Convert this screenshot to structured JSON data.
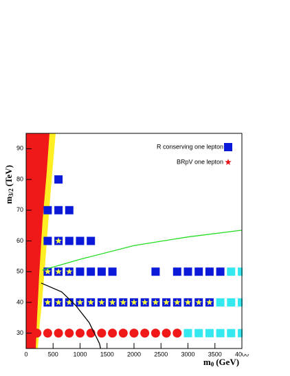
{
  "chart_data": {
    "type": "scatter",
    "xlabel": {
      "main": "m",
      "sub": "0",
      "unit": "(GeV)"
    },
    "ylabel": {
      "main": "m",
      "sub": "3/2",
      "unit": "(TeV)"
    },
    "xlim": [
      0,
      4000
    ],
    "ylim": [
      25,
      95
    ],
    "xticks": [
      0,
      500,
      1000,
      1500,
      2000,
      2500,
      3000,
      3500,
      4000
    ],
    "yticks": [
      30,
      40,
      50,
      60,
      70,
      80,
      90
    ],
    "series": [
      {
        "name": "R conserving one lepton",
        "color": "#0a1ad8",
        "marker": "square",
        "x": [
          600,
          400,
          600,
          800,
          400,
          600,
          800,
          1000,
          1200,
          400,
          600,
          800,
          1000,
          1200,
          1400,
          1600,
          2400,
          2800,
          3000,
          3200,
          3400,
          3600,
          400,
          600,
          800,
          1000,
          1200,
          1400,
          1600,
          1800,
          2000,
          2200,
          2400,
          2600,
          2800,
          3000,
          3200,
          3400
        ],
        "y": [
          80,
          70,
          70,
          70,
          60,
          60,
          60,
          60,
          60,
          50,
          50,
          50,
          50,
          50,
          50,
          50,
          50,
          50,
          50,
          50,
          50,
          50,
          40,
          40,
          40,
          40,
          40,
          40,
          40,
          40,
          40,
          40,
          40,
          40,
          40,
          40,
          40,
          40
        ]
      },
      {
        "color": "#33e8ef",
        "marker": "square",
        "x": [
          3800,
          4000,
          3600,
          3800,
          4000,
          3000,
          3200,
          3400,
          3600,
          3800,
          4000
        ],
        "y": [
          50,
          50,
          40,
          40,
          40,
          30,
          30,
          30,
          30,
          30,
          30
        ]
      },
      {
        "color": "#f01818",
        "marker": "circle",
        "x": [
          200,
          400,
          600,
          800,
          1000,
          1200,
          1400,
          1600,
          1800,
          2000,
          2200,
          2400,
          2600,
          2800
        ],
        "y": [
          30,
          30,
          30,
          30,
          30,
          30,
          30,
          30,
          30,
          30,
          30,
          30,
          30,
          30
        ]
      },
      {
        "name": "BRpV one lepton",
        "color": "#ffff40",
        "legend_color": "#e8141c",
        "marker": "star",
        "x": [
          600,
          400,
          600,
          800,
          400,
          600,
          800,
          1000,
          1200,
          1400,
          1600,
          1800,
          2000,
          2200,
          2400,
          2600,
          2800,
          3000,
          3200,
          3400
        ],
        "y": [
          60,
          50,
          50,
          50,
          40,
          40,
          40,
          40,
          40,
          40,
          40,
          40,
          40,
          40,
          40,
          40,
          40,
          40,
          40,
          40
        ]
      },
      {
        "color": "#22dd22",
        "marker": "line",
        "x": [
          300,
          1000,
          2000,
          3000,
          4000
        ],
        "y": [
          50.5,
          54,
          58.5,
          61.3,
          63.5
        ]
      },
      {
        "color": "#000000",
        "marker": "line",
        "x": [
          280,
          660,
          920,
          1170,
          1360,
          1380
        ],
        "y": [
          46.3,
          43.4,
          39,
          33.4,
          26.6,
          25
        ]
      }
    ]
  }
}
